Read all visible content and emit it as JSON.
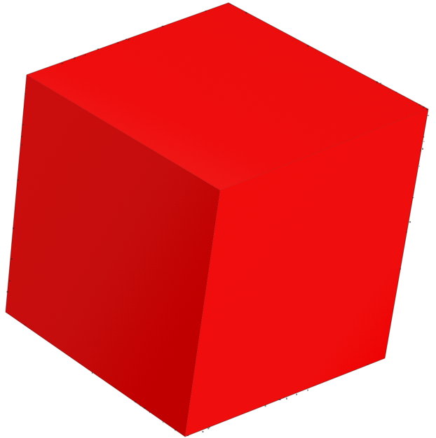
{
  "scene": {
    "subject": "cube",
    "colors": {
      "background": "#ffffff",
      "top_face": "#ff1a1a",
      "left_face": "#d81414",
      "right_face": "#ff1212",
      "edge_speckle": "#222222"
    }
  }
}
